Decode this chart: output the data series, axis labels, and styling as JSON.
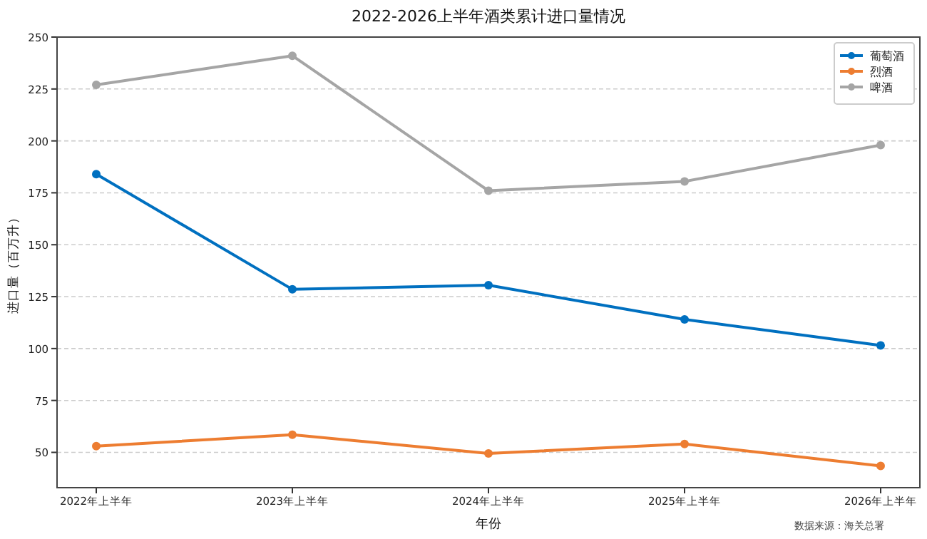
{
  "chart_data": {
    "type": "line",
    "title": "2022-2026上半年酒类累计进口量情况",
    "xlabel": "年份",
    "ylabel": "进口量（百万升）",
    "categories": [
      "2022年上半年",
      "2023年上半年",
      "2024年上半年",
      "2025年上半年",
      "2026年上半年"
    ],
    "series": [
      {
        "name": "葡萄酒",
        "color": "#0070c0",
        "values": [
          184,
          128.5,
          130.5,
          114,
          101.5
        ]
      },
      {
        "name": "烈酒",
        "color": "#ed7d31",
        "values": [
          53,
          58.5,
          49.5,
          54,
          43.5
        ]
      },
      {
        "name": "啤酒",
        "color": "#a5a5a5",
        "values": [
          227,
          241,
          176,
          180.5,
          198
        ]
      }
    ],
    "ylim": [
      33,
      250
    ],
    "yticks": [
      50,
      75,
      100,
      125,
      150,
      175,
      200,
      225,
      250
    ],
    "grid": "y",
    "legend": "top right",
    "marker": "circle",
    "line_style": "solid",
    "annotations": [
      "数据来源：海关总署"
    ]
  }
}
